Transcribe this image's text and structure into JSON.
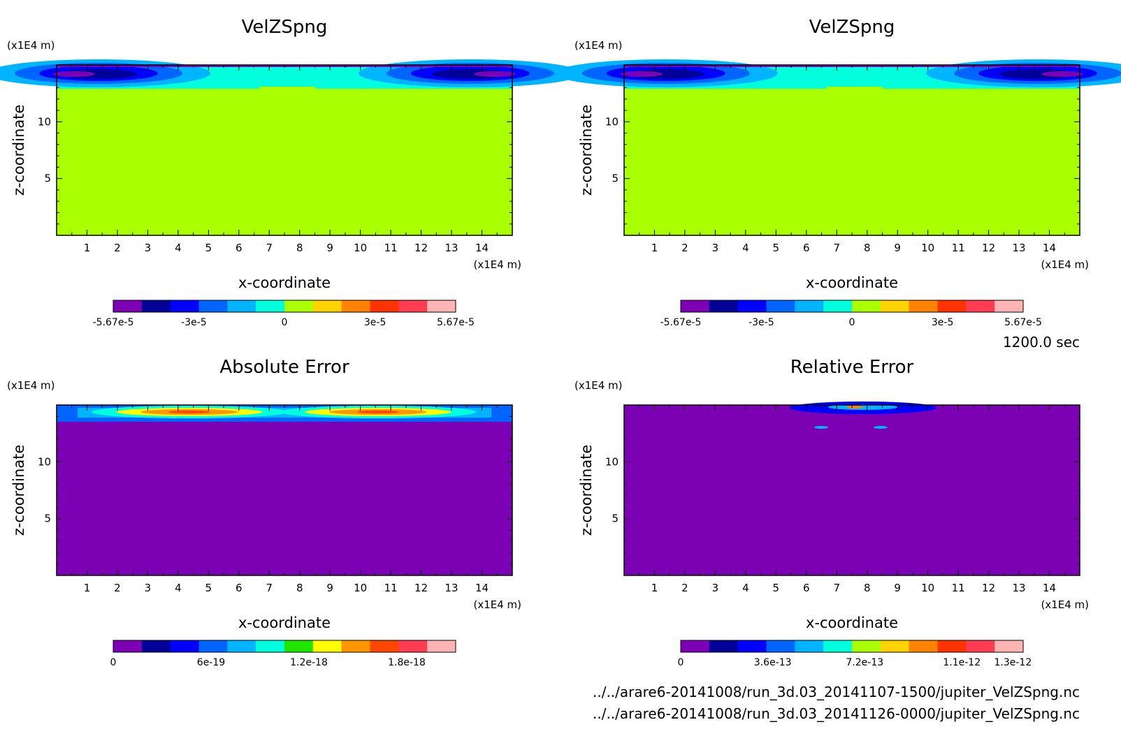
{
  "time_label": "1200.0 sec",
  "file_paths": [
    "../../arare6-20141008/run_3d.03_20141107-1500/jupiter_VelZSpng.nc",
    "../../arare6-20141008/run_3d.03_20141126-0000/jupiter_VelZSpng.nc"
  ],
  "chart_data": [
    {
      "type": "heatmap",
      "title": "VelZSpng",
      "xlabel": "x-coordinate",
      "ylabel": "z-coordinate",
      "x_unit": "(x1E4 m)",
      "y_unit": "(x1E4 m)",
      "x_ticks": [
        1,
        2,
        3,
        4,
        5,
        6,
        7,
        8,
        9,
        10,
        11,
        12,
        13,
        14
      ],
      "y_ticks": [
        5,
        10
      ],
      "xlim": [
        0,
        15
      ],
      "ylim": [
        0,
        15
      ],
      "colorbar": {
        "colors": [
          "#7c00b4",
          "#000098",
          "#0000ff",
          "#0064ff",
          "#00b4ff",
          "#00ffdc",
          "#aaff00",
          "#ffd200",
          "#ff8200",
          "#ff3200",
          "#ff3c50",
          "#ffb4b4"
        ],
        "labels": [
          "-5.67e-5",
          "-3e-5",
          "0",
          "3e-5",
          "5.67e-5"
        ],
        "label_values": [
          -5.67e-05,
          -3e-05,
          0,
          3e-05,
          5.67e-05
        ],
        "range": [
          -5.67e-05,
          5.67e-05
        ]
      },
      "background": "#aaff00"
    },
    {
      "type": "heatmap",
      "title": "VelZSpng",
      "xlabel": "x-coordinate",
      "ylabel": "z-coordinate",
      "x_unit": "(x1E4 m)",
      "y_unit": "(x1E4 m)",
      "x_ticks": [
        1,
        2,
        3,
        4,
        5,
        6,
        7,
        8,
        9,
        10,
        11,
        12,
        13,
        14
      ],
      "y_ticks": [
        5,
        10
      ],
      "xlim": [
        0,
        15
      ],
      "ylim": [
        0,
        15
      ],
      "colorbar": {
        "colors": [
          "#7c00b4",
          "#000098",
          "#0000ff",
          "#0064ff",
          "#00b4ff",
          "#00ffdc",
          "#aaff00",
          "#ffd200",
          "#ff8200",
          "#ff3200",
          "#ff3c50",
          "#ffb4b4"
        ],
        "labels": [
          "-5.67e-5",
          "-3e-5",
          "0",
          "3e-5",
          "5.67e-5"
        ],
        "label_values": [
          -5.67e-05,
          -3e-05,
          0,
          3e-05,
          5.67e-05
        ],
        "range": [
          -5.67e-05,
          5.67e-05
        ]
      },
      "background": "#aaff00"
    },
    {
      "type": "heatmap",
      "title": "Absolute Error",
      "xlabel": "x-coordinate",
      "ylabel": "z-coordinate",
      "x_unit": "(x1E4 m)",
      "y_unit": "(x1E4 m)",
      "x_ticks": [
        1,
        2,
        3,
        4,
        5,
        6,
        7,
        8,
        9,
        10,
        11,
        12,
        13,
        14
      ],
      "y_ticks": [
        5,
        10
      ],
      "xlim": [
        0,
        15
      ],
      "ylim": [
        0,
        15
      ],
      "colorbar": {
        "colors": [
          "#7c00b4",
          "#000098",
          "#0000ff",
          "#0064ff",
          "#00b4ff",
          "#00ffdc",
          "#1ee600",
          "#ffff00",
          "#ff9600",
          "#ff4600",
          "#ff3c50",
          "#ffb4b4"
        ],
        "labels": [
          "0",
          "6e-19",
          "1.2e-18",
          "1.8e-18"
        ],
        "label_values": [
          0,
          6e-19,
          1.2e-18,
          1.8e-18
        ],
        "range": [
          0,
          2.1e-18
        ]
      },
      "background": "#7c00b4"
    },
    {
      "type": "heatmap",
      "title": "Relative Error",
      "xlabel": "x-coordinate",
      "ylabel": "z-coordinate",
      "x_unit": "(x1E4 m)",
      "y_unit": "(x1E4 m)",
      "x_ticks": [
        1,
        2,
        3,
        4,
        5,
        6,
        7,
        8,
        9,
        10,
        11,
        12,
        13,
        14
      ],
      "y_ticks": [
        5,
        10
      ],
      "xlim": [
        0,
        15
      ],
      "ylim": [
        0,
        15
      ],
      "colorbar": {
        "colors": [
          "#7c00b4",
          "#000098",
          "#0000ff",
          "#0064ff",
          "#00b4ff",
          "#00ffdc",
          "#aaff00",
          "#ffd200",
          "#ff8200",
          "#ff3200",
          "#ff3c50",
          "#ffb4b4"
        ],
        "labels": [
          "0",
          "3.6e-13",
          "7.2e-13",
          "1.1e-12",
          "1.3e-12"
        ],
        "label_values": [
          0,
          3.6e-13,
          7.2e-13,
          1.1e-12,
          1.3e-12
        ],
        "range": [
          0,
          1.34e-12
        ]
      },
      "background": "#7c00b4"
    }
  ]
}
